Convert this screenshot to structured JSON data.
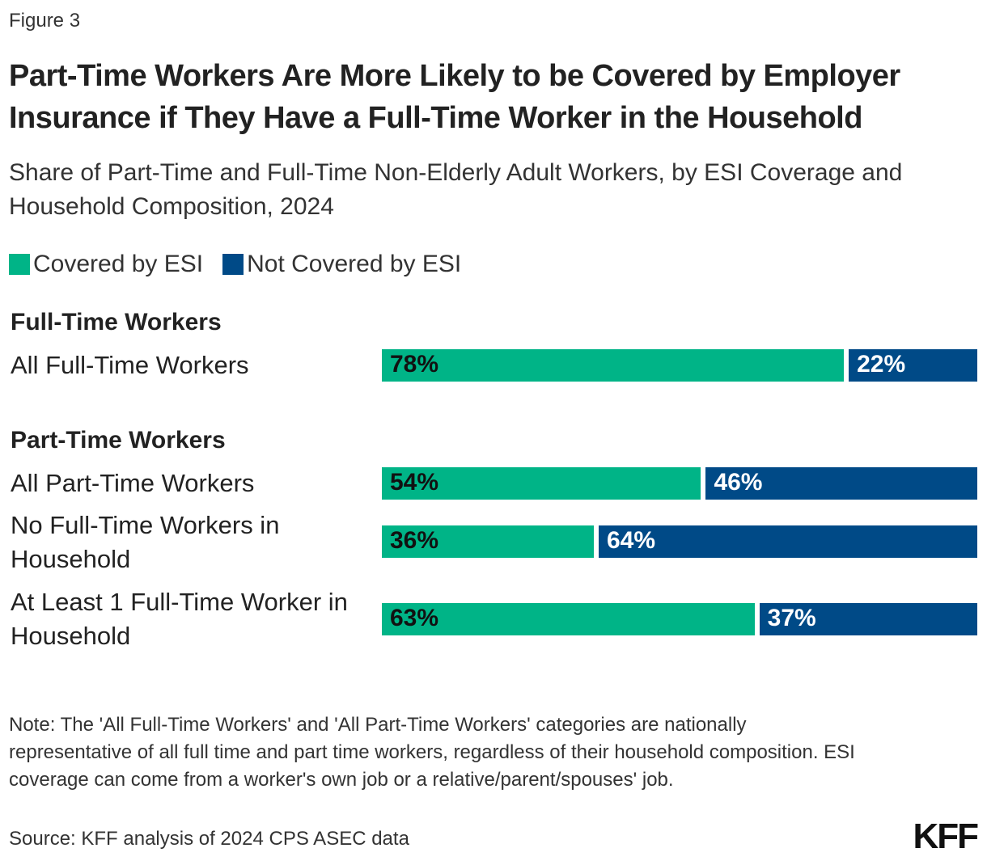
{
  "figure_label": "Figure 3",
  "chart_data": {
    "type": "bar",
    "orientation": "horizontal",
    "stacked": true,
    "title": "Part-Time Workers Are More Likely to be Covered by Employer Insurance if They Have a Full-Time Worker in the Household",
    "subtitle": "Share of Part-Time and Full-Time Non-Elderly Adult Workers, by ESI Coverage and Household Composition, 2024",
    "legend_position": "top-left",
    "xlim": [
      0,
      100
    ],
    "grid": false,
    "groups": [
      {
        "label": "Full-Time Workers",
        "categories": [
          "All Full-Time Workers"
        ]
      },
      {
        "label": "Part-Time Workers",
        "categories": [
          "All Part-Time Workers",
          "No Full-Time Workers in Household",
          "At Least 1 Full-Time Worker in Household"
        ]
      }
    ],
    "categories": [
      "All Full-Time Workers",
      "All Part-Time Workers",
      "No Full-Time Workers in Household",
      "At Least 1 Full-Time Worker in Household"
    ],
    "series": [
      {
        "name": "Covered by ESI",
        "color": "#00B487",
        "values": [
          78,
          54,
          36,
          63
        ],
        "labels": [
          "78%",
          "54%",
          "36%",
          "63%"
        ]
      },
      {
        "name": "Not Covered by ESI",
        "color": "#004A87",
        "values": [
          22,
          46,
          64,
          37
        ],
        "labels": [
          "22%",
          "46%",
          "64%",
          "37%"
        ]
      }
    ]
  },
  "note": "Note: The 'All Full-Time Workers' and 'All Part-Time Workers' categories are nationally representative of all full time and part time workers, regardless of their household composition. ESI coverage can come from a worker's own job or a relative/parent/spouses' job.",
  "source": "Source: KFF analysis of 2024 CPS ASEC data",
  "logo": "KFF"
}
